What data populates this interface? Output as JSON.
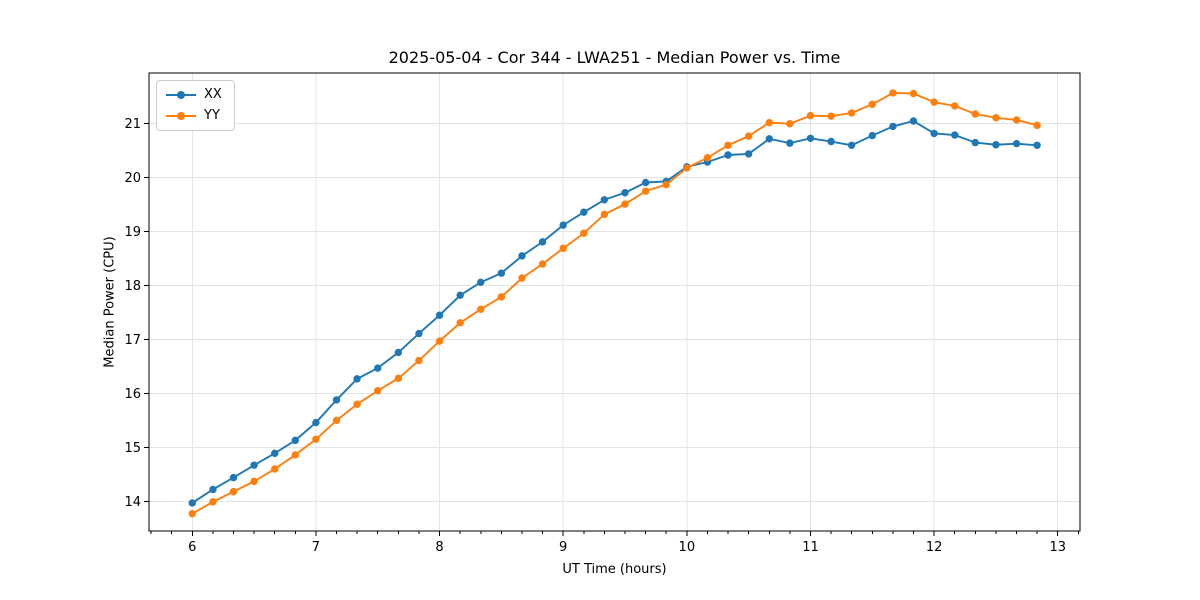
{
  "chart_data": {
    "type": "line",
    "title": "2025-05-04 - Cor 344 - LWA251 - Median Power vs. Time",
    "xlabel": "UT Time (hours)",
    "ylabel": "Median Power (CPU)",
    "xlim": [
      5.65,
      13.18
    ],
    "ylim": [
      13.45,
      21.94
    ],
    "xticks": [
      6,
      7,
      8,
      9,
      10,
      11,
      12,
      13
    ],
    "yticks": [
      14,
      15,
      16,
      17,
      18,
      19,
      20,
      21
    ],
    "x_minor_ticks_per_hour": 6,
    "grid": true,
    "grid_color": "#e4e4e4",
    "legend_position": "upper left",
    "x": [
      6.0,
      6.167,
      6.333,
      6.5,
      6.667,
      6.833,
      7.0,
      7.167,
      7.333,
      7.5,
      7.667,
      7.833,
      8.0,
      8.167,
      8.333,
      8.5,
      8.667,
      8.833,
      9.0,
      9.167,
      9.333,
      9.5,
      9.667,
      9.833,
      10.0,
      10.167,
      10.333,
      10.5,
      10.667,
      10.833,
      11.0,
      11.167,
      11.333,
      11.5,
      11.667,
      11.833,
      12.0,
      12.167,
      12.333,
      12.5,
      12.667,
      12.833
    ],
    "series": [
      {
        "name": "XX",
        "color": "#1f77b4",
        "values": [
          13.97,
          14.22,
          14.44,
          14.67,
          14.89,
          15.13,
          15.46,
          15.88,
          16.27,
          16.47,
          16.76,
          17.11,
          17.45,
          17.82,
          18.06,
          18.23,
          18.55,
          18.81,
          19.12,
          19.36,
          19.59,
          19.72,
          19.91,
          19.93,
          20.2,
          20.29,
          20.42,
          20.44,
          20.72,
          20.64,
          20.73,
          20.67,
          20.6,
          20.78,
          20.95,
          21.05,
          20.82,
          20.79,
          20.65,
          20.61,
          20.63,
          20.6
        ]
      },
      {
        "name": "YY",
        "color": "#ff7f0e",
        "values": [
          13.77,
          13.99,
          14.18,
          14.37,
          14.6,
          14.86,
          15.15,
          15.5,
          15.8,
          16.05,
          16.28,
          16.61,
          16.97,
          17.31,
          17.56,
          17.79,
          18.14,
          18.4,
          18.69,
          18.97,
          19.32,
          19.51,
          19.75,
          19.87,
          20.18,
          20.37,
          20.6,
          20.77,
          21.02,
          21.0,
          21.15,
          21.14,
          21.2,
          21.36,
          21.57,
          21.56,
          21.4,
          21.33,
          21.18,
          21.11,
          21.07,
          20.97
        ]
      }
    ]
  }
}
